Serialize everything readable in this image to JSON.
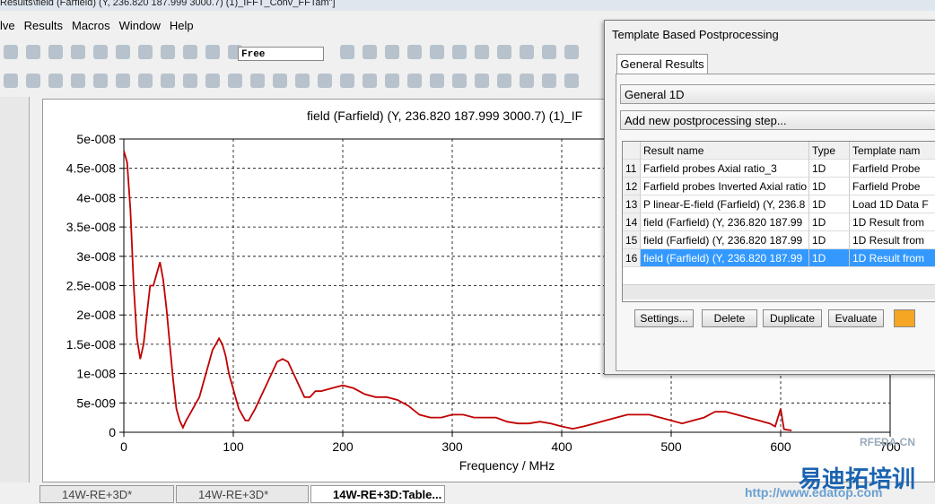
{
  "window_title": "Results\\field (Farfield) (Y, 236.820 187.999 3000.7) (1)_IFFT_Conv_FFTam\"]",
  "menu": [
    "lve",
    "Results",
    "Macros",
    "Window",
    "Help"
  ],
  "toolbar": {
    "mode": "Free"
  },
  "chart_data": {
    "type": "line",
    "title": "field (Farfield) (Y, 236.820 187.999 3000.7) (1)_IF",
    "x_label": "Frequency / MHz",
    "color": "#c00000",
    "grid": true,
    "xlim": [
      0,
      700
    ],
    "xticks": [
      0,
      100,
      200,
      300,
      400,
      500,
      600,
      700
    ],
    "ylim": [
      0,
      5e-08
    ],
    "yticks": [
      0,
      {
        "value": 5e-09,
        "label": "5e-009"
      },
      {
        "value": 1e-08,
        "label": "1e-008"
      },
      {
        "value": 1.5e-08,
        "label": "1.5e-008"
      },
      {
        "value": 2e-08,
        "label": "2e-008"
      },
      {
        "value": 2.5e-08,
        "label": "2.5e-008"
      },
      {
        "value": 3e-08,
        "label": "3e-008"
      },
      {
        "value": 3.5e-08,
        "label": "3.5e-008"
      },
      {
        "value": 4e-08,
        "label": "4e-008"
      },
      {
        "value": 4.5e-08,
        "label": "4.5e-008"
      },
      {
        "value": 5e-08,
        "label": "5e-008"
      }
    ],
    "x": [
      0,
      3,
      6,
      9,
      12,
      15,
      18,
      21,
      24,
      27,
      30,
      33,
      36,
      39,
      42,
      45,
      48,
      51,
      54,
      57,
      60,
      63,
      66,
      69,
      72,
      75,
      78,
      81,
      84,
      87,
      90,
      93,
      96,
      99,
      102,
      105,
      108,
      111,
      114,
      117,
      120,
      125,
      130,
      135,
      140,
      145,
      150,
      155,
      160,
      165,
      170,
      175,
      180,
      190,
      200,
      210,
      220,
      230,
      240,
      250,
      260,
      270,
      280,
      290,
      300,
      310,
      320,
      330,
      340,
      350,
      360,
      370,
      380,
      390,
      400,
      410,
      420,
      430,
      440,
      450,
      460,
      470,
      480,
      490,
      500,
      510,
      520,
      530,
      540,
      550,
      560,
      570,
      580,
      590,
      595,
      600,
      603,
      610
    ],
    "values": [
      4.8e-08,
      4.6e-08,
      3.8e-08,
      2.5e-08,
      1.6e-08,
      1.25e-08,
      1.5e-08,
      2e-08,
      2.5e-08,
      2.5e-08,
      2.7e-08,
      2.9e-08,
      2.6e-08,
      2.1e-08,
      1.5e-08,
      9e-09,
      4e-09,
      2e-09,
      8e-10,
      2e-09,
      3e-09,
      4e-09,
      5e-09,
      6e-09,
      8e-09,
      1e-08,
      1.2e-08,
      1.4e-08,
      1.5e-08,
      1.6e-08,
      1.5e-08,
      1.3e-08,
      1e-08,
      8e-09,
      6e-09,
      4e-09,
      3e-09,
      2e-09,
      2e-09,
      3e-09,
      4e-09,
      6e-09,
      8e-09,
      1e-08,
      1.2e-08,
      1.25e-08,
      1.2e-08,
      1e-08,
      8e-09,
      6e-09,
      6e-09,
      7e-09,
      7e-09,
      7.5e-09,
      8e-09,
      7.5e-09,
      6.5e-09,
      6e-09,
      6e-09,
      5.5e-09,
      4.5e-09,
      3e-09,
      2.5e-09,
      2.5e-09,
      3e-09,
      3e-09,
      2.5e-09,
      2.5e-09,
      2.5e-09,
      1.8e-09,
      1.5e-09,
      1.5e-09,
      1.8e-09,
      1.5e-09,
      1e-09,
      6e-10,
      1e-09,
      1.5e-09,
      2e-09,
      2.5e-09,
      3e-09,
      3e-09,
      3e-09,
      2.5e-09,
      2e-09,
      1.5e-09,
      2e-09,
      2.5e-09,
      3.5e-09,
      3.5e-09,
      3e-09,
      2.5e-09,
      2e-09,
      1.5e-09,
      1e-09,
      4e-09,
      5e-10,
      3e-10
    ]
  },
  "dialog": {
    "title": "Template Based Postprocessing",
    "tab": "General Results",
    "dropdown": "General 1D",
    "add_step": "Add new postprocessing step...",
    "table": {
      "headers": [
        "Result name",
        "Type",
        "Template nam"
      ],
      "rows": [
        [
          "11",
          "Farfield probes Axial ratio_3",
          "1D",
          "Farfield Probe"
        ],
        [
          "12",
          "Farfield probes Inverted Axial ratio",
          "1D",
          "Farfield Probe"
        ],
        [
          "13",
          "P linear-E-field (Farfield) (Y, 236.8",
          "1D",
          "Load 1D Data F"
        ],
        [
          "14",
          "field (Farfield) (Y, 236.820 187.99",
          "1D",
          "1D Result from"
        ],
        [
          "15",
          "field (Farfield) (Y, 236.820 187.99",
          "1D",
          "1D Result from"
        ],
        [
          "16",
          "field (Farfield) (Y, 236.820 187.99",
          "1D",
          "1D Result from"
        ]
      ]
    },
    "buttons": [
      "Settings...",
      "Delete",
      "Duplicate",
      "Evaluate"
    ]
  },
  "tabs": [
    "14W-RE+3D*",
    "14W-RE+3D*",
    "14W-RE+3D:Table..."
  ],
  "watermark": [
    "RFEDA.CN",
    "易迪拓培训",
    "http://www.edatop.com"
  ]
}
